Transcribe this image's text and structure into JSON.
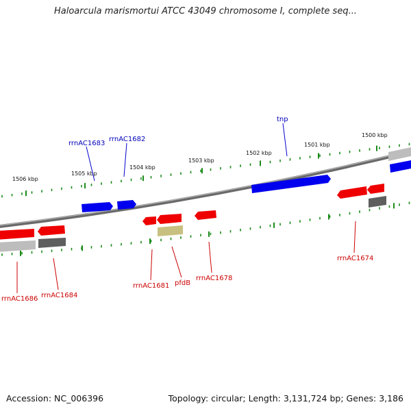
{
  "title": "Haloarcula marismortui ATCC 43049 chromosome I, complete seq...",
  "footer": {
    "accession": "Accession: NC_006396",
    "summary": "Topology: circular; Length: 3,131,724 bp; Genes: 3,186"
  },
  "colors": {
    "forward_gene": "#0000ee",
    "reverse_rrna": "#ee0000",
    "reverse_gray": "#c0c0c0",
    "reverse_dark": "#606060",
    "pseudo_gene": "#c8c080",
    "tick": "#1a8a1a",
    "backbone": "#808080"
  },
  "ticks": [
    {
      "label": "1506 kbp"
    },
    {
      "label": "1505 kbp"
    },
    {
      "label": "1504 kbp"
    },
    {
      "label": "1503 kbp"
    },
    {
      "label": "1502 kbp"
    },
    {
      "label": "1501 kbp"
    },
    {
      "label": "1500 kbp"
    }
  ],
  "gene_labels": [
    {
      "text": "rrnAC1683",
      "strand": "forward"
    },
    {
      "text": "rrnAC1682",
      "strand": "forward"
    },
    {
      "text": "tnp",
      "strand": "forward"
    },
    {
      "text": "rrnAC1686",
      "strand": "reverse"
    },
    {
      "text": "rrnAC1684",
      "strand": "reverse"
    },
    {
      "text": "rrnAC1681",
      "strand": "reverse"
    },
    {
      "text": "pfdB",
      "strand": "reverse"
    },
    {
      "text": "rrnAC1678",
      "strand": "reverse"
    },
    {
      "text": "rrnAC1674",
      "strand": "reverse"
    }
  ]
}
